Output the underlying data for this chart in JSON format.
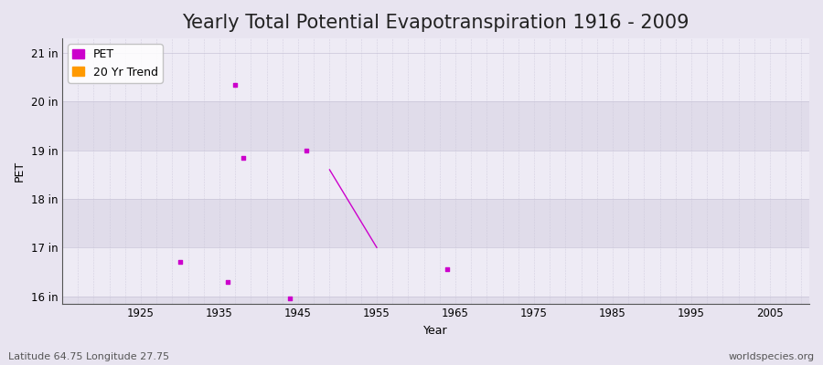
{
  "title": "Yearly Total Potential Evapotranspiration 1916 - 2009",
  "xlabel": "Year",
  "ylabel": "PET",
  "background_color": "#e8e4f0",
  "plot_bg_color": "#eeebf5",
  "alt_band_color": "#e0dcea",
  "grid_color": "#c8c4d8",
  "xlim": [
    1915,
    2010
  ],
  "ylim": [
    15.85,
    21.3
  ],
  "yticks": [
    16,
    17,
    18,
    19,
    20,
    21
  ],
  "ytick_labels": [
    "16 in",
    "17 in",
    "18 in",
    "19 in",
    "20 in",
    "21 in"
  ],
  "xticks": [
    1925,
    1935,
    1945,
    1955,
    1965,
    1975,
    1985,
    1995,
    2005
  ],
  "scatter_x": [
    1930,
    1936,
    1938,
    1944,
    1946,
    1964
  ],
  "scatter_y": [
    16.7,
    16.3,
    18.85,
    15.95,
    19.0,
    16.55
  ],
  "scatter_color": "#cc00cc",
  "trend_line_x": [
    1949,
    1955
  ],
  "trend_line_y": [
    18.6,
    17.0
  ],
  "trend_line_color": "#cc00cc",
  "outlier_x": 1937,
  "outlier_y": 20.35,
  "pet_legend_color": "#cc00cc",
  "trend_legend_color": "#ff9900",
  "footer_left": "Latitude 64.75 Longitude 27.75",
  "footer_right": "worldspecies.org",
  "title_fontsize": 15,
  "axis_label_fontsize": 9,
  "tick_fontsize": 8.5,
  "footer_fontsize": 8,
  "legend_fontsize": 9
}
